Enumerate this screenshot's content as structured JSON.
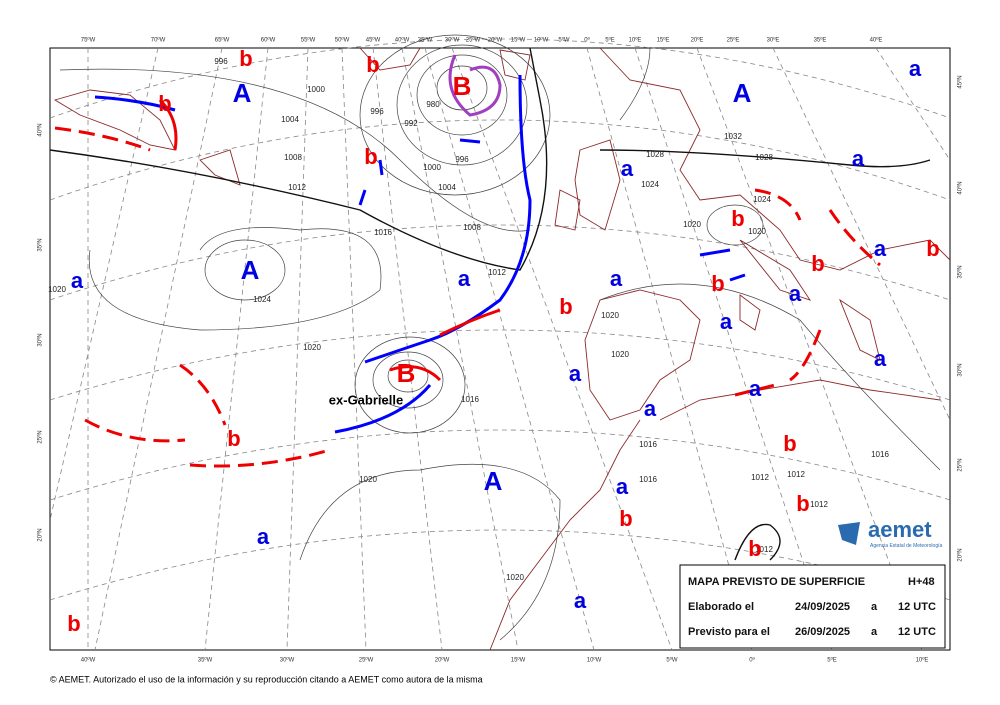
{
  "lon_labels_top": [
    "75ºW",
    "70ºW",
    "65ºW",
    "60ºW",
    "55ºW",
    "50ºW",
    "45ºW",
    "40ºW",
    "35ºW",
    "30ºW",
    "25ºW",
    "20ºW",
    "15ºW",
    "10ºW",
    "5ºW",
    "0º",
    "5ºE",
    "10ºE",
    "15ºE",
    "20ºE",
    "25ºE",
    "30ºE",
    "35ºE",
    "40ºE"
  ],
  "lon_labels_bottom": [
    "40ºW",
    "35ºW",
    "30ºW",
    "25ºW",
    "20ºW",
    "15ºW",
    "10ºW",
    "5ºW",
    "0º",
    "5ºE",
    "10ºE"
  ],
  "lat_labels_left": [
    "40ºN",
    "35ºN",
    "30ºN",
    "25ºN",
    "20ºN"
  ],
  "lat_labels_right": [
    "45ºN",
    "40ºN",
    "35ºN",
    "30ºN",
    "25ºN",
    "20ºN"
  ],
  "high_centers": [
    "A",
    "A",
    "A",
    "A"
  ],
  "low_centers": [
    "B",
    "B"
  ],
  "minor_highs": [
    "a",
    "a",
    "a",
    "a",
    "a",
    "a",
    "a",
    "a",
    "a",
    "a",
    "a",
    "a",
    "a",
    "a",
    "a",
    "a"
  ],
  "minor_lows": [
    "b",
    "b",
    "b",
    "b",
    "b",
    "b",
    "b",
    "b",
    "b",
    "b",
    "b",
    "b",
    "b",
    "b",
    "b"
  ],
  "isobar_labels": [
    "996",
    "1000",
    "1004",
    "1008",
    "1012",
    "996",
    "980",
    "992",
    "996",
    "1000",
    "1004",
    "1008",
    "1012",
    "1016",
    "1020",
    "1024",
    "1020",
    "1020",
    "1016",
    "1028",
    "1028",
    "1032",
    "1024",
    "1020",
    "1020",
    "1024",
    "1020",
    "1020",
    "1016",
    "1012",
    "1012",
    "1012",
    "1016",
    "1020",
    "1016",
    "1012"
  ],
  "storm_label": "ex-Gabrielle",
  "info_box": {
    "title": "MAPA PREVISTO DE SUPERFICIE",
    "step": "H+48",
    "rows": [
      [
        "Elaborado el",
        "24/09/2025",
        "a",
        "12 UTC"
      ],
      [
        "Previsto para el",
        "26/09/2025",
        "a",
        "12 UTC"
      ]
    ]
  },
  "logo": {
    "name": "aemet",
    "subtitle": "Agencia Estatal de Meteorología"
  },
  "footer": "© AEMET. Autorizado el uso de la información y su reproducción citando a AEMET como autora de la misma"
}
